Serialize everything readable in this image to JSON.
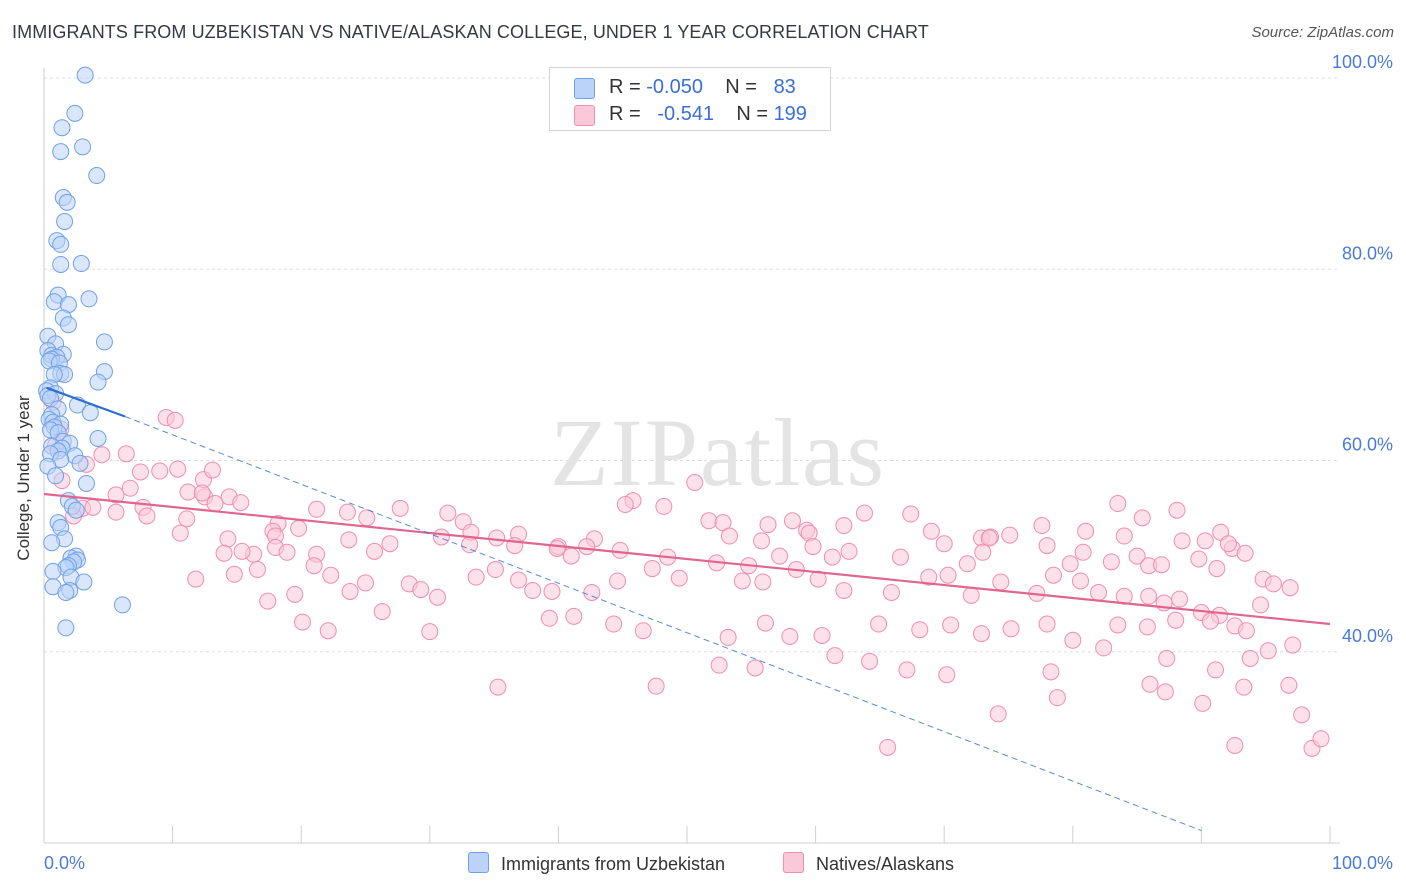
{
  "header": {
    "title": "IMMIGRANTS FROM UZBEKISTAN VS NATIVE/ALASKAN COLLEGE, UNDER 1 YEAR CORRELATION CHART",
    "source": "Source: ZipAtlas.com"
  },
  "watermark": "ZIPatlas",
  "legend_stats": {
    "r_label": "R =",
    "n_label": "N =",
    "rows": [
      {
        "r": "-0.050",
        "n": "83"
      },
      {
        "r": "-0.541",
        "n": "199"
      }
    ]
  },
  "chart_data": {
    "type": "scatter",
    "xlabel": "",
    "ylabel": "College, Under 1 year",
    "xlim": [
      0,
      100
    ],
    "ylim": [
      20,
      100
    ],
    "x_tick_labels": [
      "0.0%",
      "100.0%"
    ],
    "y_tick_values": [
      40,
      60,
      80,
      100
    ],
    "y_tick_labels": [
      "40.0%",
      "60.0%",
      "80.0%",
      "100.0%"
    ],
    "grid": true,
    "legend_position": "bottom",
    "colors": {
      "uzbekistan": "#6ea0ea",
      "natives": "#f08db0",
      "uzbekistan_line": "#2d6fd2",
      "natives_line": "#e0668f",
      "axis_text": "#4a7bd6"
    },
    "series": [
      {
        "name": "Immigrants from Uzbekistan",
        "trend": {
          "x": [
            0.2,
            6.3
          ],
          "y": [
            67.6,
            64.6
          ],
          "dashed_extension": {
            "x": [
              6.3,
              90
            ],
            "y": [
              64.6,
              21.3
            ]
          }
        },
        "points": [
          [
            3.2,
            100.3
          ],
          [
            2.4,
            96.3
          ],
          [
            1.4,
            94.8
          ],
          [
            3.0,
            92.8
          ],
          [
            1.3,
            92.3
          ],
          [
            4.1,
            89.8
          ],
          [
            1.5,
            87.5
          ],
          [
            1.8,
            87.0
          ],
          [
            1.6,
            85.0
          ],
          [
            1.0,
            83.0
          ],
          [
            1.3,
            82.6
          ],
          [
            2.9,
            80.6
          ],
          [
            1.3,
            80.5
          ],
          [
            1.1,
            77.3
          ],
          [
            3.5,
            76.9
          ],
          [
            0.8,
            76.6
          ],
          [
            1.9,
            76.3
          ],
          [
            1.5,
            74.9
          ],
          [
            1.9,
            74.2
          ],
          [
            0.3,
            73.0
          ],
          [
            4.7,
            72.4
          ],
          [
            0.9,
            72.2
          ],
          [
            0.3,
            71.5
          ],
          [
            0.6,
            71.0
          ],
          [
            1.5,
            71.1
          ],
          [
            1.0,
            70.8
          ],
          [
            0.6,
            70.6
          ],
          [
            0.4,
            70.4
          ],
          [
            1.2,
            70.2
          ],
          [
            4.7,
            69.3
          ],
          [
            1.3,
            69.1
          ],
          [
            1.6,
            69.0
          ],
          [
            0.8,
            69.0
          ],
          [
            4.2,
            68.2
          ],
          [
            0.5,
            67.6
          ],
          [
            0.2,
            67.3
          ],
          [
            0.9,
            67.0
          ],
          [
            0.3,
            66.8
          ],
          [
            0.5,
            66.5
          ],
          [
            2.6,
            65.8
          ],
          [
            1.1,
            65.4
          ],
          [
            3.6,
            65.0
          ],
          [
            0.6,
            64.8
          ],
          [
            0.4,
            64.3
          ],
          [
            0.7,
            64.0
          ],
          [
            1.3,
            63.8
          ],
          [
            0.8,
            63.5
          ],
          [
            0.5,
            63.2
          ],
          [
            1.1,
            62.9
          ],
          [
            4.2,
            62.3
          ],
          [
            1.5,
            62.0
          ],
          [
            2.0,
            61.8
          ],
          [
            0.6,
            61.5
          ],
          [
            1.4,
            61.3
          ],
          [
            1.1,
            61.0
          ],
          [
            0.5,
            60.7
          ],
          [
            2.4,
            60.5
          ],
          [
            1.3,
            60.1
          ],
          [
            2.8,
            59.7
          ],
          [
            0.3,
            59.4
          ],
          [
            3.3,
            57.6
          ],
          [
            1.9,
            55.8
          ],
          [
            2.2,
            55.2
          ],
          [
            2.5,
            54.8
          ],
          [
            1.1,
            53.5
          ],
          [
            1.3,
            53.0
          ],
          [
            1.6,
            51.8
          ],
          [
            0.6,
            51.4
          ],
          [
            2.5,
            50.0
          ],
          [
            2.1,
            49.8
          ],
          [
            2.6,
            49.6
          ],
          [
            2.3,
            49.4
          ],
          [
            1.9,
            49.0
          ],
          [
            1.7,
            48.8
          ],
          [
            0.7,
            48.4
          ],
          [
            2.1,
            47.8
          ],
          [
            3.1,
            47.3
          ],
          [
            0.7,
            46.8
          ],
          [
            2.0,
            46.4
          ],
          [
            1.7,
            46.2
          ],
          [
            6.1,
            44.9
          ],
          [
            1.7,
            42.5
          ],
          [
            0.9,
            58.4
          ]
        ]
      },
      {
        "name": "Natives/Alaskans",
        "trend": {
          "x": [
            0,
            100
          ],
          "y": [
            56.5,
            42.9
          ]
        },
        "points": [
          [
            1.4,
            57.9
          ],
          [
            0.9,
            61.6
          ],
          [
            1.3,
            63.3
          ],
          [
            0.7,
            66.1
          ],
          [
            9.5,
            64.5
          ],
          [
            10.2,
            64.2
          ],
          [
            4.5,
            60.6
          ],
          [
            6.4,
            60.7
          ],
          [
            7.5,
            58.8
          ],
          [
            9.0,
            58.9
          ],
          [
            10.4,
            59.1
          ],
          [
            12.4,
            58.0
          ],
          [
            13.1,
            59.0
          ],
          [
            3.3,
            59.6
          ],
          [
            5.6,
            56.4
          ],
          [
            6.7,
            57.1
          ],
          [
            11.2,
            56.7
          ],
          [
            12.5,
            56.2
          ],
          [
            14.4,
            56.2
          ],
          [
            3.0,
            55.0
          ],
          [
            3.8,
            55.1
          ],
          [
            7.7,
            55.1
          ],
          [
            12.3,
            56.6
          ],
          [
            13.3,
            55.5
          ],
          [
            15.3,
            55.6
          ],
          [
            2.3,
            54.2
          ],
          [
            5.6,
            54.6
          ],
          [
            8.0,
            54.2
          ],
          [
            11.1,
            53.9
          ],
          [
            18.2,
            53.4
          ],
          [
            21.2,
            54.9
          ],
          [
            23.6,
            54.6
          ],
          [
            25.1,
            54.0
          ],
          [
            27.7,
            55.0
          ],
          [
            17.8,
            52.6
          ],
          [
            18.0,
            52.1
          ],
          [
            14.3,
            51.8
          ],
          [
            19.8,
            52.9
          ],
          [
            10.6,
            52.4
          ],
          [
            23.7,
            51.7
          ],
          [
            26.9,
            51.3
          ],
          [
            31.4,
            54.5
          ],
          [
            32.6,
            53.6
          ],
          [
            33.2,
            52.5
          ],
          [
            35.2,
            51.9
          ],
          [
            36.9,
            52.3
          ],
          [
            40.0,
            51.0
          ],
          [
            41.0,
            50.0
          ],
          [
            42.8,
            51.8
          ],
          [
            45.8,
            55.8
          ],
          [
            45.2,
            55.4
          ],
          [
            48.2,
            55.2
          ],
          [
            50.6,
            57.7
          ],
          [
            51.7,
            53.7
          ],
          [
            52.8,
            53.5
          ],
          [
            53.3,
            52.1
          ],
          [
            56.3,
            53.3
          ],
          [
            58.2,
            53.7
          ],
          [
            59.3,
            52.7
          ],
          [
            59.5,
            52.4
          ],
          [
            62.2,
            53.2
          ],
          [
            63.8,
            54.5
          ],
          [
            67.4,
            54.4
          ],
          [
            69.0,
            52.6
          ],
          [
            72.9,
            51.9
          ],
          [
            73.6,
            52.0
          ],
          [
            73.5,
            51.9
          ],
          [
            75.1,
            52.2
          ],
          [
            77.6,
            53.2
          ],
          [
            81.0,
            52.6
          ],
          [
            83.5,
            55.5
          ],
          [
            84.0,
            52.1
          ],
          [
            85.4,
            54.0
          ],
          [
            88.1,
            54.8
          ],
          [
            90.3,
            51.6
          ],
          [
            91.5,
            52.5
          ],
          [
            92.4,
            50.8
          ],
          [
            92.1,
            51.3
          ],
          [
            14.0,
            50.3
          ],
          [
            16.3,
            50.2
          ],
          [
            15.4,
            50.5
          ],
          [
            18.0,
            50.9
          ],
          [
            18.9,
            50.4
          ],
          [
            21.2,
            50.2
          ],
          [
            25.7,
            50.5
          ],
          [
            30.9,
            52.0
          ],
          [
            33.1,
            51.2
          ],
          [
            36.6,
            51.1
          ],
          [
            39.9,
            50.8
          ],
          [
            42.2,
            51.0
          ],
          [
            44.8,
            50.6
          ],
          [
            48.5,
            49.9
          ],
          [
            55.8,
            51.6
          ],
          [
            54.8,
            49.0
          ],
          [
            57.2,
            50.0
          ],
          [
            59.8,
            51.0
          ],
          [
            61.3,
            49.9
          ],
          [
            62.6,
            50.5
          ],
          [
            66.6,
            49.9
          ],
          [
            70.0,
            51.3
          ],
          [
            71.8,
            49.2
          ],
          [
            73.0,
            50.4
          ],
          [
            78.0,
            51.1
          ],
          [
            79.8,
            49.2
          ],
          [
            80.8,
            50.4
          ],
          [
            83.0,
            49.4
          ],
          [
            85.0,
            50.0
          ],
          [
            85.9,
            49.0
          ],
          [
            86.9,
            49.1
          ],
          [
            88.5,
            51.6
          ],
          [
            89.8,
            49.7
          ],
          [
            91.2,
            48.7
          ],
          [
            93.4,
            50.3
          ],
          [
            94.8,
            47.6
          ],
          [
            95.6,
            47.1
          ],
          [
            96.9,
            46.7
          ],
          [
            11.8,
            47.6
          ],
          [
            14.8,
            48.1
          ],
          [
            16.6,
            48.6
          ],
          [
            19.5,
            46.0
          ],
          [
            21.0,
            49.0
          ],
          [
            22.3,
            48.0
          ],
          [
            23.8,
            46.3
          ],
          [
            25.0,
            47.2
          ],
          [
            28.4,
            47.1
          ],
          [
            29.3,
            46.5
          ],
          [
            30.6,
            45.7
          ],
          [
            33.6,
            47.8
          ],
          [
            35.1,
            48.6
          ],
          [
            36.9,
            47.5
          ],
          [
            38.0,
            46.4
          ],
          [
            39.5,
            46.3
          ],
          [
            42.6,
            46.2
          ],
          [
            44.6,
            47.4
          ],
          [
            47.3,
            48.7
          ],
          [
            49.4,
            47.7
          ],
          [
            52.3,
            49.3
          ],
          [
            54.3,
            47.4
          ],
          [
            55.9,
            47.3
          ],
          [
            58.5,
            48.6
          ],
          [
            60.2,
            47.6
          ],
          [
            62.2,
            46.4
          ],
          [
            65.9,
            46.2
          ],
          [
            68.8,
            47.8
          ],
          [
            70.3,
            48.0
          ],
          [
            72.1,
            45.9
          ],
          [
            74.4,
            47.3
          ],
          [
            77.2,
            46.1
          ],
          [
            78.5,
            48.0
          ],
          [
            80.6,
            47.4
          ],
          [
            82.0,
            46.2
          ],
          [
            84.0,
            45.8
          ],
          [
            85.9,
            45.8
          ],
          [
            87.1,
            45.1
          ],
          [
            88.3,
            45.5
          ],
          [
            90.0,
            44.1
          ],
          [
            91.4,
            43.8
          ],
          [
            92.6,
            42.7
          ],
          [
            94.6,
            44.9
          ],
          [
            17.4,
            45.3
          ],
          [
            20.1,
            43.1
          ],
          [
            22.1,
            42.2
          ],
          [
            26.3,
            44.2
          ],
          [
            30.0,
            42.1
          ],
          [
            39.3,
            43.5
          ],
          [
            41.2,
            43.7
          ],
          [
            44.3,
            42.9
          ],
          [
            46.6,
            42.2
          ],
          [
            53.2,
            41.5
          ],
          [
            56.1,
            43.0
          ],
          [
            60.5,
            41.7
          ],
          [
            64.9,
            42.9
          ],
          [
            68.1,
            42.3
          ],
          [
            70.5,
            42.8
          ],
          [
            72.9,
            41.9
          ],
          [
            75.2,
            42.4
          ],
          [
            78.0,
            42.9
          ],
          [
            80.0,
            41.2
          ],
          [
            83.5,
            42.8
          ],
          [
            85.8,
            42.6
          ],
          [
            88.0,
            43.3
          ],
          [
            90.7,
            43.2
          ],
          [
            93.5,
            42.2
          ],
          [
            58.0,
            41.6
          ],
          [
            52.5,
            38.6
          ],
          [
            55.3,
            38.3
          ],
          [
            61.5,
            39.6
          ],
          [
            64.2,
            39.0
          ],
          [
            67.1,
            38.1
          ],
          [
            70.2,
            37.6
          ],
          [
            78.3,
            37.9
          ],
          [
            82.4,
            40.4
          ],
          [
            87.3,
            39.3
          ],
          [
            91.1,
            38.1
          ],
          [
            93.8,
            39.3
          ],
          [
            95.2,
            40.1
          ],
          [
            97.1,
            40.7
          ],
          [
            93.3,
            36.3
          ],
          [
            86.0,
            36.6
          ],
          [
            87.2,
            35.8
          ],
          [
            90.1,
            34.6
          ],
          [
            96.8,
            36.5
          ],
          [
            97.8,
            33.4
          ],
          [
            98.6,
            29.9
          ],
          [
            99.3,
            30.9
          ],
          [
            92.6,
            30.2
          ],
          [
            47.6,
            36.4
          ],
          [
            35.3,
            36.3
          ],
          [
            65.6,
            30.0
          ],
          [
            74.2,
            33.5
          ],
          [
            78.8,
            35.2
          ]
        ]
      }
    ]
  }
}
